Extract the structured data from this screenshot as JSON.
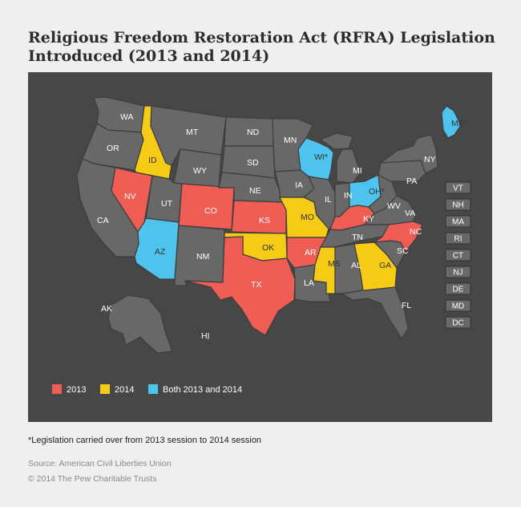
{
  "title": {
    "line1": "Religious Freedom Restoration Act (RFRA) Legislation",
    "line2": "Introduced (2013 and 2014)"
  },
  "colors": {
    "y2013": "#f05d55",
    "y2014": "#f6cb16",
    "both": "#4ec3ee",
    "none": "#686868",
    "panel": "#474747"
  },
  "states": [
    {
      "abbr": "WA",
      "status": "none"
    },
    {
      "abbr": "OR",
      "status": "none"
    },
    {
      "abbr": "CA",
      "status": "none"
    },
    {
      "abbr": "ID",
      "status": "2014"
    },
    {
      "abbr": "NV",
      "status": "2013"
    },
    {
      "abbr": "MT",
      "status": "none"
    },
    {
      "abbr": "WY",
      "status": "none"
    },
    {
      "abbr": "UT",
      "status": "none"
    },
    {
      "abbr": "AZ",
      "status": "both"
    },
    {
      "abbr": "CO",
      "status": "2013"
    },
    {
      "abbr": "NM",
      "status": "none"
    },
    {
      "abbr": "ND",
      "status": "none"
    },
    {
      "abbr": "SD",
      "status": "none"
    },
    {
      "abbr": "NE",
      "status": "none"
    },
    {
      "abbr": "KS",
      "status": "2013"
    },
    {
      "abbr": "OK",
      "status": "2014"
    },
    {
      "abbr": "TX",
      "status": "2013"
    },
    {
      "abbr": "MN",
      "status": "none"
    },
    {
      "abbr": "IA",
      "status": "none"
    },
    {
      "abbr": "MO",
      "status": "2014"
    },
    {
      "abbr": "AR",
      "status": "2013"
    },
    {
      "abbr": "LA",
      "status": "none"
    },
    {
      "abbr": "WI*",
      "status": "both"
    },
    {
      "abbr": "IL",
      "status": "none"
    },
    {
      "abbr": "MS",
      "status": "2014"
    },
    {
      "abbr": "MI",
      "status": "none"
    },
    {
      "abbr": "IN",
      "status": "none"
    },
    {
      "abbr": "OH*",
      "status": "both"
    },
    {
      "abbr": "KY",
      "status": "2013"
    },
    {
      "abbr": "TN",
      "status": "none"
    },
    {
      "abbr": "AL",
      "status": "none"
    },
    {
      "abbr": "GA",
      "status": "2014"
    },
    {
      "abbr": "FL",
      "status": "none"
    },
    {
      "abbr": "SC",
      "status": "none"
    },
    {
      "abbr": "NC",
      "status": "2013"
    },
    {
      "abbr": "VA",
      "status": "none"
    },
    {
      "abbr": "WV",
      "status": "none"
    },
    {
      "abbr": "PA",
      "status": "none"
    },
    {
      "abbr": "NY",
      "status": "none"
    },
    {
      "abbr": "ME*",
      "status": "both"
    },
    {
      "abbr": "AK",
      "status": "none"
    },
    {
      "abbr": "HI",
      "status": "none"
    }
  ],
  "small_states": [
    "VT",
    "NH",
    "MA",
    "RI",
    "CT",
    "NJ",
    "DE",
    "MD",
    "DC"
  ],
  "legend": [
    {
      "label": "2013",
      "status": "2013"
    },
    {
      "label": "2014",
      "status": "2014"
    },
    {
      "label": "Both 2013 and 2014",
      "status": "both"
    }
  ],
  "footnote": "*Legislation carried over from 2013 session to 2014 session",
  "source": "Source: American Civil Liberties Union",
  "copyright": "© 2014 The Pew Charitable Trusts"
}
